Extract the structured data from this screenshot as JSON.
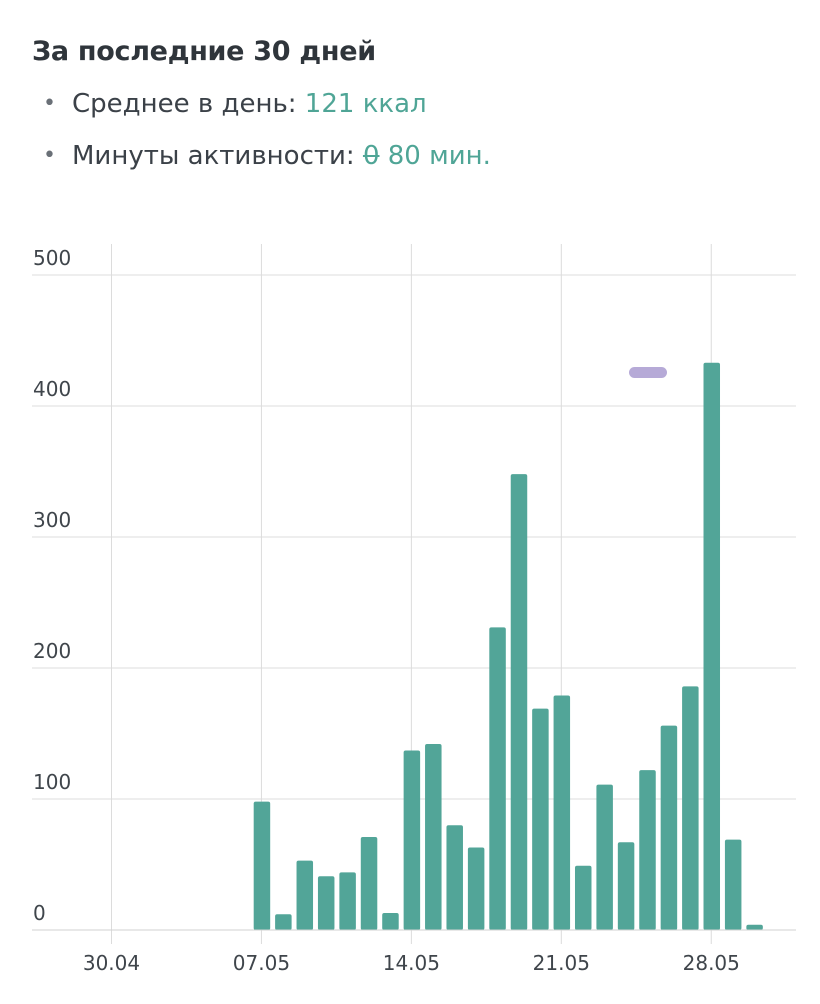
{
  "summary": {
    "title": "За последние 30 дней",
    "average_label": "Среднее в день:",
    "average_value": "121 ккал",
    "activity_label": "Минуты активности:",
    "activity_value_prefix": "0",
    "activity_value": " 80 мин."
  },
  "colors": {
    "bar": "#52a598",
    "accent": "#4fa596",
    "grid": "#dcdcdc",
    "marker": "#a99bd0"
  },
  "chart_data": {
    "type": "bar",
    "title": "",
    "xlabel": "",
    "ylabel": "",
    "ylim": [
      0,
      500
    ],
    "yticks": [
      "0",
      "100",
      "200",
      "300",
      "400",
      "500"
    ],
    "xticks": [
      "30.04",
      "07.05",
      "14.05",
      "21.05",
      "28.05"
    ],
    "grid": true,
    "categories": [
      "07.05",
      "08.05",
      "09.05",
      "10.05",
      "11.05",
      "12.05",
      "13.05",
      "14.05",
      "15.05",
      "16.05",
      "17.05",
      "18.05",
      "19.05",
      "20.05",
      "21.05",
      "22.05",
      "23.05",
      "24.05",
      "25.05",
      "26.05",
      "27.05",
      "28.05",
      "29.05",
      "30.05"
    ],
    "values": [
      98,
      12,
      53,
      41,
      44,
      71,
      13,
      137,
      142,
      80,
      63,
      231,
      348,
      169,
      179,
      49,
      111,
      67,
      122,
      156,
      186,
      433,
      69,
      4
    ]
  }
}
